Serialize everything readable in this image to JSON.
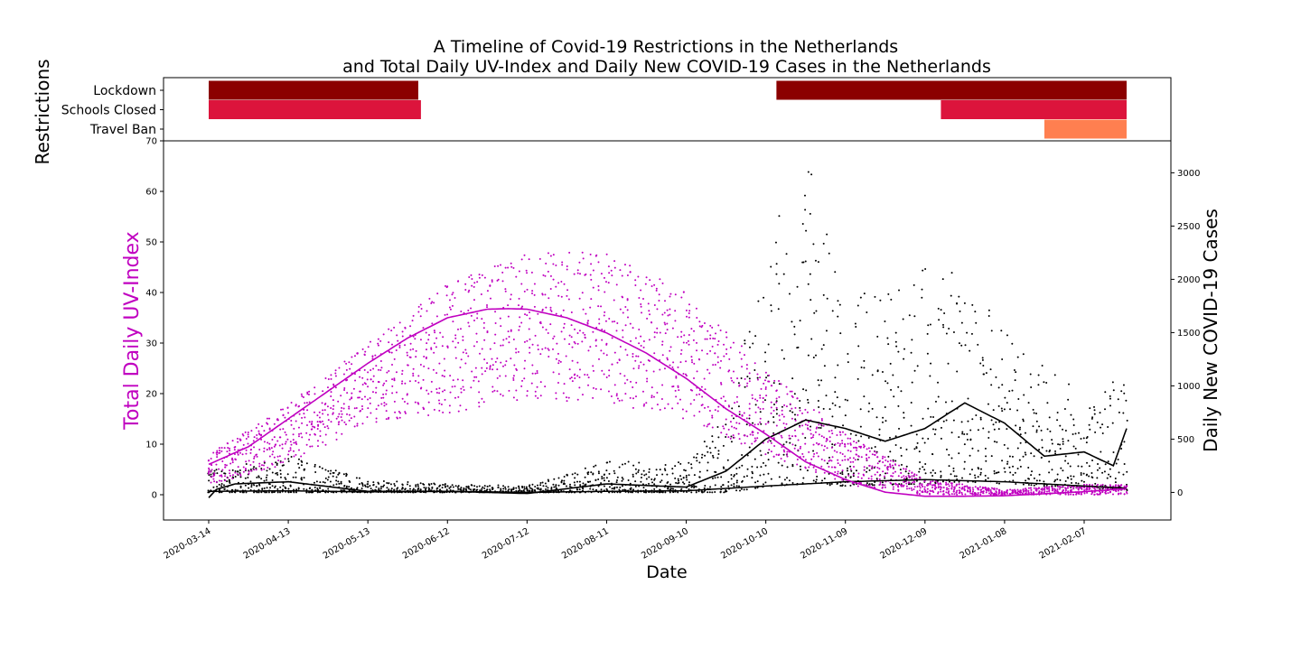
{
  "chart_data": {
    "type": "scatter",
    "title": "A Timeline of Covid-19 Restrictions in the Netherlands",
    "subtitle": "and Total Daily UV-Index and Daily New COVID-19 Cases in the Netherlands",
    "xlabel": "Date",
    "x_tick_labels": [
      "2020-03-14",
      "2020-04-13",
      "2020-05-13",
      "2020-06-12",
      "2020-07-12",
      "2020-08-11",
      "2020-09-10",
      "2020-10-10",
      "2020-11-09",
      "2020-12-09",
      "2021-01-08",
      "2021-02-07"
    ],
    "restrictions": {
      "ylabel": "Restrictions",
      "categories": [
        "Lockdown",
        "Schools Closed",
        "Travel Ban"
      ],
      "bars": [
        {
          "category": "Lockdown",
          "start": "2020-03-14",
          "end": "2020-06-01",
          "color": "#8b0000"
        },
        {
          "category": "Lockdown",
          "start": "2020-10-14",
          "end": "2021-02-23",
          "color": "#8b0000"
        },
        {
          "category": "Schools Closed",
          "start": "2020-03-14",
          "end": "2020-06-02",
          "color": "#dc143c"
        },
        {
          "category": "Schools Closed",
          "start": "2020-12-15",
          "end": "2021-02-23",
          "color": "#dc143c"
        },
        {
          "category": "Travel Ban",
          "start": "2021-01-23",
          "end": "2021-02-23",
          "color": "#ff7f50"
        }
      ]
    },
    "left_axis": {
      "label": "Total Daily UV-Index",
      "color": "#c000c0",
      "ylim": [
        -5,
        70
      ],
      "ticks": [
        0,
        10,
        20,
        30,
        40,
        50,
        60,
        70
      ]
    },
    "right_axis": {
      "label": "Daily New COVID-19 Cases",
      "color": "#000000",
      "ylim": [
        -259,
        3300
      ],
      "ticks": [
        0,
        500,
        1000,
        1500,
        2000,
        2500,
        3000
      ]
    },
    "series": [
      {
        "name": "Total Daily UV-Index",
        "type": "scatter",
        "color": "#c000c0",
        "axis": "left"
      },
      {
        "name": "Total Daily UV-Index",
        "type": "line",
        "color": "#c000c0",
        "axis": "left"
      },
      {
        "name": "Daily New COVID-19 Cases",
        "type": "scatter",
        "color": "#000000",
        "axis": "right"
      },
      {
        "name": "Daily New COVID-19 Cases",
        "type": "line",
        "color": "#000000",
        "axis": "right"
      }
    ],
    "uv_trend": {
      "dates": [
        "2020-03-14",
        "2020-03-29",
        "2020-04-13",
        "2020-04-28",
        "2020-05-13",
        "2020-05-28",
        "2020-06-12",
        "2020-06-27",
        "2020-07-05",
        "2020-07-12",
        "2020-07-27",
        "2020-08-11",
        "2020-08-26",
        "2020-09-10",
        "2020-09-25",
        "2020-10-10",
        "2020-10-25",
        "2020-11-09",
        "2020-11-24",
        "2020-12-09",
        "2020-12-24",
        "2021-01-08",
        "2021-01-23",
        "2021-02-07",
        "2021-02-23"
      ],
      "values": [
        6,
        9.5,
        15,
        20.5,
        26,
        31,
        35,
        36.7,
        36.8,
        36.7,
        35,
        32,
        28,
        23,
        17,
        12,
        6.5,
        3,
        0.5,
        -0.3,
        -0.3,
        -0.2,
        0.2,
        0.6,
        1.2
      ]
    },
    "uv_scatter_range": {
      "dates": [
        "2020-03-14",
        "2020-04-13",
        "2020-05-13",
        "2020-06-12",
        "2020-07-12",
        "2020-08-11",
        "2020-09-10",
        "2020-10-10",
        "2020-11-09",
        "2020-12-09",
        "2021-01-08",
        "2021-02-07",
        "2021-02-23"
      ],
      "min": [
        2,
        6,
        14,
        16,
        19,
        18,
        15,
        8,
        2,
        0,
        0,
        0,
        0
      ],
      "max": [
        8,
        18,
        30,
        42,
        48,
        48,
        40,
        25,
        12,
        3,
        1,
        2,
        2
      ]
    },
    "cases_trend_main": {
      "dates": [
        "2020-03-14",
        "2020-03-17",
        "2020-03-24",
        "2020-04-13",
        "2020-05-13",
        "2020-06-12",
        "2020-07-12",
        "2020-08-11",
        "2020-09-10",
        "2020-09-25",
        "2020-10-10",
        "2020-10-25",
        "2020-11-09",
        "2020-11-24",
        "2020-12-09",
        "2020-12-24",
        "2021-01-08",
        "2021-01-23",
        "2021-02-07",
        "2021-02-18",
        "2021-02-23"
      ],
      "values": [
        -50,
        30,
        80,
        100,
        10,
        10,
        -10,
        80,
        50,
        200,
        500,
        680,
        600,
        480,
        600,
        840,
        650,
        340,
        380,
        250,
        600
      ]
    },
    "cases_trend_lower": {
      "dates": [
        "2020-03-14",
        "2020-04-13",
        "2020-05-13",
        "2020-06-12",
        "2020-07-12",
        "2020-08-11",
        "2020-09-10",
        "2020-10-10",
        "2020-11-09",
        "2020-12-09",
        "2021-01-08",
        "2021-02-07",
        "2021-02-23"
      ],
      "values": [
        10,
        15,
        5,
        10,
        0,
        10,
        15,
        60,
        100,
        120,
        100,
        60,
        40
      ]
    },
    "cases_scatter_range": {
      "dates": [
        "2020-03-14",
        "2020-04-13",
        "2020-05-13",
        "2020-06-12",
        "2020-07-12",
        "2020-08-11",
        "2020-09-10",
        "2020-09-25",
        "2020-10-10",
        "2020-10-25",
        "2020-11-09",
        "2020-12-09",
        "2020-12-24",
        "2021-01-08",
        "2021-02-07",
        "2021-02-23"
      ],
      "min": [
        0,
        0,
        0,
        0,
        0,
        0,
        0,
        0,
        50,
        80,
        60,
        80,
        100,
        80,
        40,
        20
      ],
      "max": [
        200,
        350,
        120,
        80,
        60,
        300,
        300,
        700,
        2300,
        3200,
        1800,
        2100,
        2100,
        1500,
        900,
        1100
      ]
    },
    "colors": {
      "lockdown": "#8b0000",
      "schools_closed": "#dc143c",
      "travel_ban": "#ff7f50",
      "uv": "#c000c0",
      "cases": "#000000"
    }
  }
}
